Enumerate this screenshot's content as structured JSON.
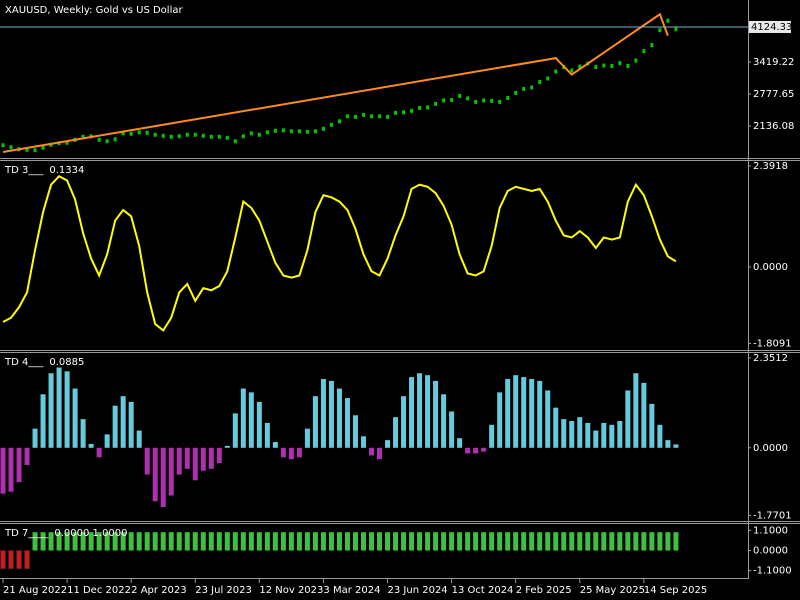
{
  "chart_data": [
    {
      "type": "candles",
      "title": "XAUUSD, Weekly:  Gold vs US Dollar",
      "color": "#00c800",
      "xlim": [
        0,
        93
      ],
      "ylim": [
        1514,
        4646
      ],
      "yticks": [
        2136.08,
        2777.65,
        3419.22
      ],
      "price_line": 4124.33,
      "price_line_color": "#7fb0c0",
      "values": [
        1750,
        1710,
        1670,
        1660,
        1650,
        1700,
        1760,
        1790,
        1800,
        1860,
        1920,
        1930,
        1860,
        1830,
        1870,
        1990,
        1980,
        2010,
        2000,
        1960,
        1940,
        1920,
        1930,
        1960,
        1960,
        1940,
        1920,
        1920,
        1900,
        1830,
        1930,
        1990,
        1960,
        2010,
        2040,
        2050,
        2030,
        2030,
        2020,
        2030,
        2080,
        2160,
        2230,
        2330,
        2320,
        2360,
        2330,
        2330,
        2320,
        2400,
        2410,
        2440,
        2500,
        2510,
        2580,
        2650,
        2660,
        2740,
        2690,
        2620,
        2650,
        2640,
        2620,
        2700,
        2800,
        2880,
        2910,
        3020,
        3090,
        3230,
        3320,
        3250,
        3330,
        3390,
        3320,
        3350,
        3340,
        3400,
        3340,
        3450,
        3640,
        3760,
        4060,
        4250,
        4080
      ],
      "zigzag": {
        "color": "#ff8c1a",
        "x": [
          0,
          69,
          71,
          82,
          83
        ],
        "values": [
          1615,
          3500,
          3170,
          4380,
          3950
        ]
      }
    },
    {
      "type": "line",
      "title": "TD 3___",
      "subtitle": "0.1334",
      "color": "#ffff00",
      "xlim": [
        0,
        93
      ],
      "ylim": [
        -1.94,
        2.51
      ],
      "yticks": [
        2.3918,
        {
          "value": 0,
          "label": "0.0000"
        },
        -1.8091
      ],
      "values": [
        -1.3,
        -1.2,
        -0.95,
        -0.6,
        0.4,
        1.3,
        1.95,
        2.15,
        2.05,
        1.6,
        0.8,
        0.2,
        -0.2,
        0.3,
        1.1,
        1.35,
        1.2,
        0.5,
        -0.6,
        -1.35,
        -1.5,
        -1.2,
        -0.6,
        -0.4,
        -0.8,
        -0.5,
        -0.55,
        -0.45,
        -0.1,
        0.7,
        1.55,
        1.4,
        1.1,
        0.6,
        0.1,
        -0.2,
        -0.25,
        -0.2,
        0.4,
        1.3,
        1.7,
        1.65,
        1.55,
        1.35,
        0.9,
        0.3,
        -0.1,
        -0.2,
        0.2,
        0.75,
        1.2,
        1.85,
        1.95,
        1.9,
        1.75,
        1.45,
        1.0,
        0.3,
        -0.15,
        -0.2,
        -0.1,
        0.5,
        1.4,
        1.8,
        1.9,
        1.85,
        1.8,
        1.85,
        1.55,
        1.1,
        0.75,
        0.7,
        0.85,
        0.7,
        0.45,
        0.7,
        0.65,
        0.7,
        1.55,
        1.95,
        1.7,
        1.2,
        0.65,
        0.25,
        0.1334
      ]
    },
    {
      "type": "histogram",
      "title": "TD 4___",
      "subtitle": "0.0885",
      "positive_color": "#66ccdd",
      "negative_color": "#b030b0",
      "xlim": [
        0,
        93
      ],
      "ylim": [
        -1.89,
        2.48
      ],
      "yticks": [
        2.3512,
        {
          "value": 0,
          "label": "0.0000"
        },
        -1.7701
      ],
      "values": [
        -1.2,
        -1.15,
        -0.9,
        -0.45,
        0.5,
        1.4,
        1.95,
        2.1,
        2.0,
        1.55,
        0.75,
        0.1,
        -0.25,
        0.35,
        1.1,
        1.35,
        1.2,
        0.45,
        -0.7,
        -1.4,
        -1.55,
        -1.25,
        -0.7,
        -0.55,
        -0.85,
        -0.6,
        -0.55,
        -0.4,
        0.05,
        0.9,
        1.55,
        1.45,
        1.2,
        0.65,
        0.15,
        -0.25,
        -0.3,
        -0.25,
        0.5,
        1.35,
        1.8,
        1.75,
        1.55,
        1.3,
        0.85,
        0.3,
        -0.2,
        -0.3,
        0.2,
        0.8,
        1.35,
        1.85,
        1.95,
        1.9,
        1.75,
        1.4,
        0.95,
        0.25,
        -0.15,
        -0.15,
        -0.1,
        0.6,
        1.45,
        1.8,
        1.9,
        1.85,
        1.8,
        1.75,
        1.5,
        1.05,
        0.75,
        0.7,
        0.8,
        0.65,
        0.45,
        0.65,
        0.6,
        0.7,
        1.5,
        1.95,
        1.7,
        1.15,
        0.6,
        0.2,
        0.0885
      ]
    },
    {
      "type": "histogram",
      "title": "TD 7____",
      "subtitle": "0.0000 1.0000",
      "positive_color": "#40c040",
      "negative_color": "#c02020",
      "xlim": [
        0,
        93
      ],
      "ylim": [
        -1.45,
        1.45
      ],
      "yticks": [
        {
          "value": 1.1,
          "label": "1.1000"
        },
        {
          "value": 0,
          "label": "0.0000"
        },
        {
          "value": -1.1,
          "label": "-1.1000"
        }
      ],
      "xticks": [
        {
          "value": 0,
          "label": "21 Aug 2022"
        },
        {
          "value": 8,
          "label": "11 Dec 2022"
        },
        {
          "value": 16,
          "label": "2 Apr 2023"
        },
        {
          "value": 24,
          "label": "23 Jul 2023"
        },
        {
          "value": 32,
          "label": "12 Nov 2023"
        },
        {
          "value": 40,
          "label": "3 Mar 2024"
        },
        {
          "value": 48,
          "label": "23 Jun 2024"
        },
        {
          "value": 56,
          "label": "13 Oct 2024"
        },
        {
          "value": 64,
          "label": "2 Feb 2025"
        },
        {
          "value": 72,
          "label": "25 May 2025"
        },
        {
          "value": 80,
          "label": "14 Sep 2025"
        }
      ],
      "values": [
        -1,
        -1,
        -1,
        -1,
        1,
        1,
        1,
        1,
        1,
        1,
        1,
        1,
        1,
        1,
        1,
        1,
        1,
        1,
        1,
        1,
        1,
        1,
        1,
        1,
        1,
        1,
        1,
        1,
        1,
        1,
        1,
        1,
        1,
        1,
        1,
        1,
        1,
        1,
        1,
        1,
        1,
        1,
        1,
        1,
        1,
        1,
        1,
        1,
        1,
        1,
        1,
        1,
        1,
        1,
        1,
        1,
        1,
        1,
        1,
        1,
        1,
        1,
        1,
        1,
        1,
        1,
        1,
        1,
        1,
        1,
        1,
        1,
        1,
        1,
        1,
        1,
        1,
        1,
        1,
        1,
        1,
        1,
        1,
        1,
        1
      ]
    }
  ]
}
